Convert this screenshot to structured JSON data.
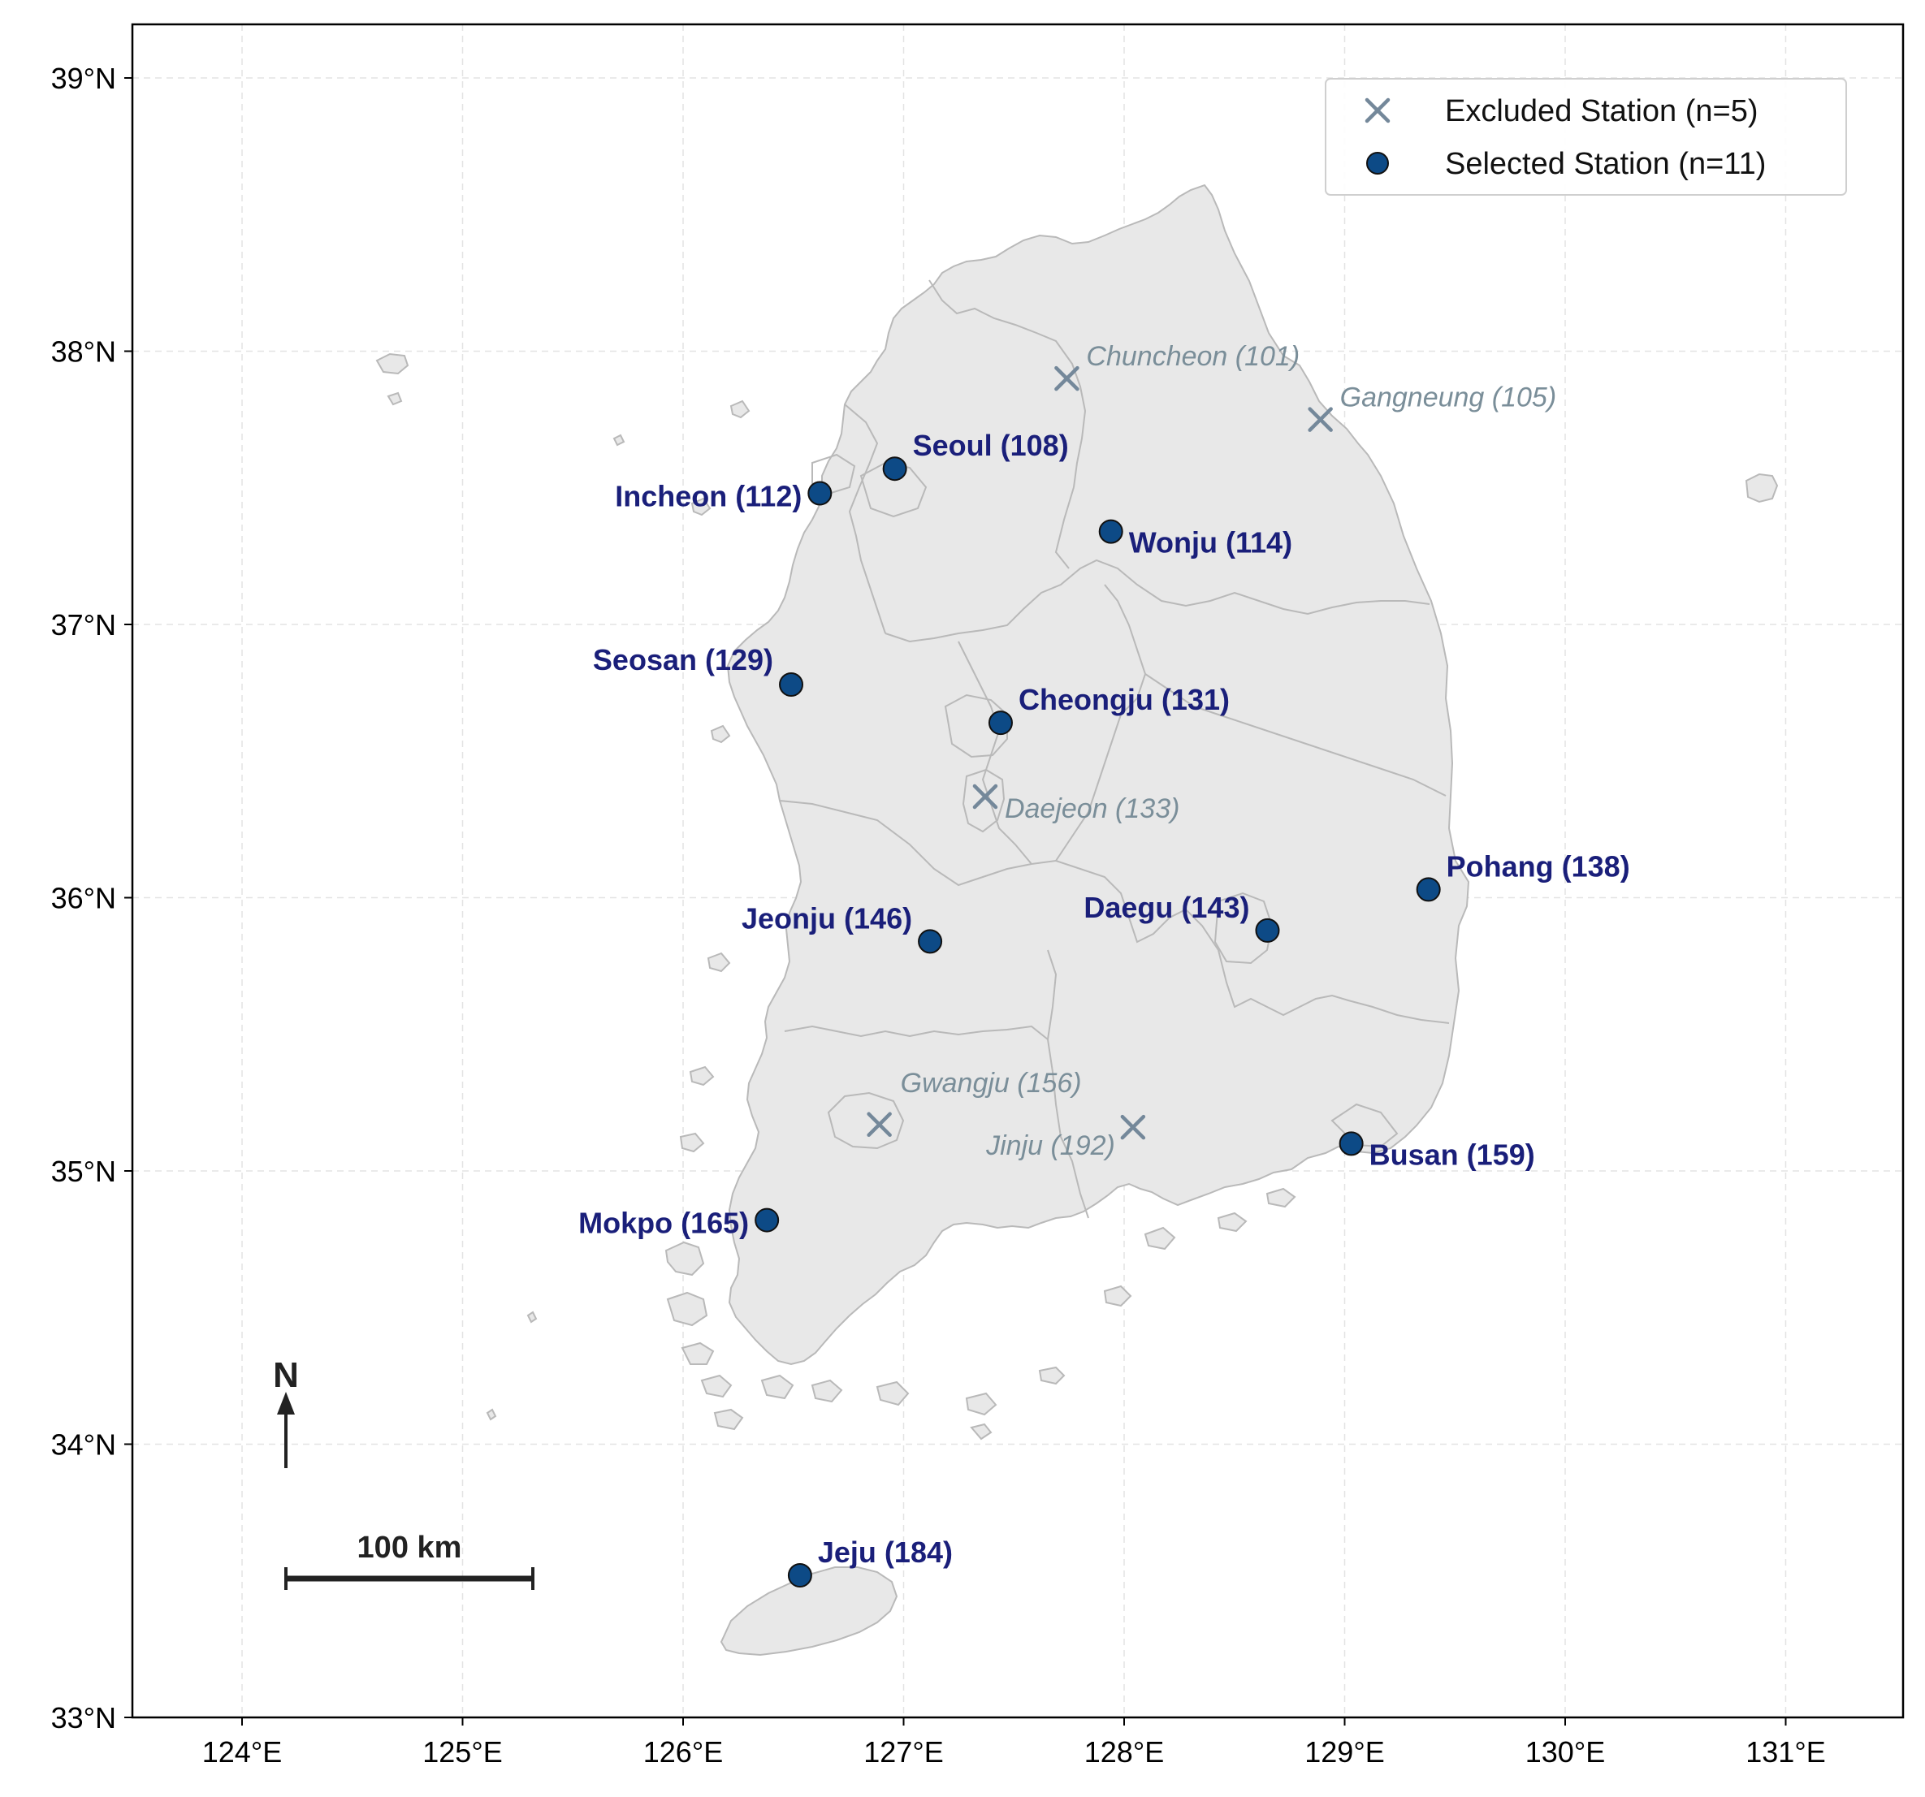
{
  "map": {
    "x_ticks": [
      "124°E",
      "125°E",
      "126°E",
      "127°E",
      "128°E",
      "129°E",
      "130°E",
      "131°E"
    ],
    "y_ticks": [
      "33°N",
      "34°N",
      "35°N",
      "36°N",
      "37°N",
      "38°N",
      "39°N"
    ],
    "legend": {
      "placement": "top-right",
      "excluded": "Excluded Station (n=5)",
      "selected": "Selected Station (n=11)"
    },
    "north_arrow": {
      "label": "N"
    },
    "scale_bar": {
      "label": "100 km"
    },
    "colors": {
      "land": "#e8e8e8",
      "border": "#b9b9b9",
      "selected_marker": "#0d4a86",
      "selected_label": "#1a1f7a",
      "excluded_marker": "#74889a",
      "excluded_label": "#7a8e99",
      "grid": "#e3e3e3"
    },
    "selected_stations": [
      {
        "name": "Seoul (108)",
        "lon": 126.96,
        "lat": 37.57
      },
      {
        "name": "Incheon (112)",
        "lon": 126.62,
        "lat": 37.48
      },
      {
        "name": "Wonju (114)",
        "lon": 127.94,
        "lat": 37.34
      },
      {
        "name": "Seosan (129)",
        "lon": 126.49,
        "lat": 36.78
      },
      {
        "name": "Cheongju (131)",
        "lon": 127.44,
        "lat": 36.64
      },
      {
        "name": "Pohang (138)",
        "lon": 129.38,
        "lat": 36.03
      },
      {
        "name": "Daegu (143)",
        "lon": 128.65,
        "lat": 35.88
      },
      {
        "name": "Jeonju (146)",
        "lon": 127.12,
        "lat": 35.84
      },
      {
        "name": "Busan (159)",
        "lon": 129.03,
        "lat": 35.1
      },
      {
        "name": "Mokpo (165)",
        "lon": 126.38,
        "lat": 34.82
      },
      {
        "name": "Jeju (184)",
        "lon": 126.53,
        "lat": 33.52
      }
    ],
    "excluded_stations": [
      {
        "name": "Chuncheon (101)",
        "lon": 127.74,
        "lat": 37.9
      },
      {
        "name": "Gangneung (105)",
        "lon": 128.89,
        "lat": 37.75
      },
      {
        "name": "Daejeon (133)",
        "lon": 127.37,
        "lat": 36.37
      },
      {
        "name": "Gwangju (156)",
        "lon": 126.89,
        "lat": 35.17
      },
      {
        "name": "Jinju (192)",
        "lon": 128.04,
        "lat": 35.16
      }
    ]
  }
}
